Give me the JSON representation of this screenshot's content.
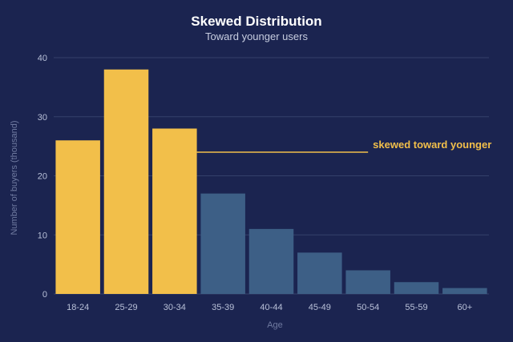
{
  "chart_data": {
    "type": "bar",
    "title": "Skewed Distribution",
    "subtitle": "Toward younger users",
    "xlabel": "Age",
    "ylabel": "Number of buyers (thousand)",
    "categories": [
      "18-24",
      "25-29",
      "30-34",
      "35-39",
      "40-44",
      "45-49",
      "50-54",
      "55-59",
      "60+"
    ],
    "values": [
      26,
      38,
      28,
      17,
      11,
      7,
      4,
      2,
      1
    ],
    "highlight_count": 3,
    "ylim": [
      0,
      40
    ],
    "yticks": [
      "0",
      "10",
      "20",
      "30",
      "40"
    ],
    "grid": true,
    "annotation": {
      "text": "skewed toward younger",
      "y": 24
    },
    "colors": {
      "background": "#1b2450",
      "highlight": "#f2bf4a",
      "normal": "#3d5f86",
      "grid": "#34406a",
      "annotation": "#f2bf4a"
    }
  }
}
